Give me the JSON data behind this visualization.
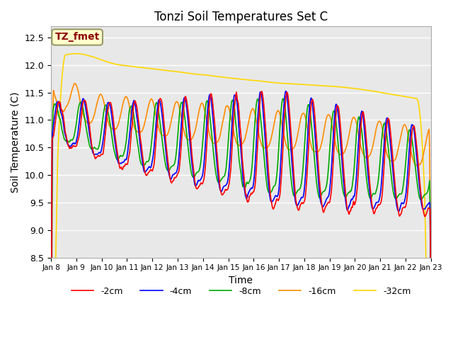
{
  "title": "Tonzi Soil Temperatures Set C",
  "xlabel": "Time",
  "ylabel": "Soil Temperature (C)",
  "ylim": [
    8.5,
    12.7
  ],
  "xlim": [
    0,
    15
  ],
  "annotation_text": "TZ_fmet",
  "annotation_color": "#8B0000",
  "annotation_bg": "#FFFFCC",
  "annotation_border": "#999966",
  "series_colors": {
    "-2cm": "#FF0000",
    "-4cm": "#0000FF",
    "-8cm": "#00AA00",
    "-16cm": "#FF8C00",
    "-32cm": "#FFD700"
  },
  "series_linewidth": 1.2,
  "bg_color": "#E8E8E8",
  "fig_bg": "#FFFFFF",
  "grid_color": "#FFFFFF",
  "tick_labels": [
    "Jan 8",
    "Jan 9",
    "Jan 10",
    "Jan 11",
    "Jan 12",
    "Jan 13",
    "Jan 14",
    "Jan 15",
    "Jan 16",
    "Jan 17",
    "Jan 18",
    "Jan 19",
    "Jan 20",
    "Jan 21",
    "Jan 22",
    "Jan 23"
  ],
  "yticks": [
    8.5,
    9.0,
    9.5,
    10.0,
    10.5,
    11.0,
    11.5,
    12.0,
    12.5
  ]
}
